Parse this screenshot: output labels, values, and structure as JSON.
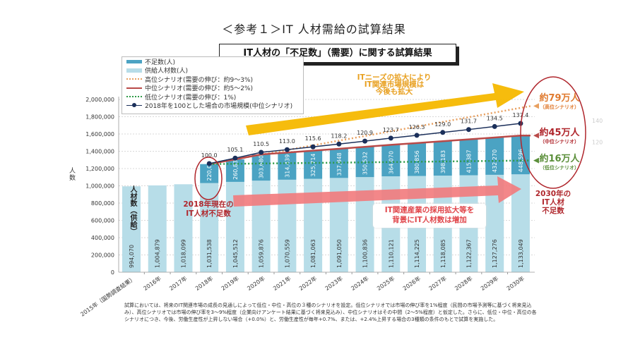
{
  "title": "＜参考１＞IT 人材需給の試算結果",
  "subtitle": "IT人材の「不足数」（需要）に関する試算結果",
  "legend": [
    {
      "label": "不足数(人)",
      "style": "bar-shortage"
    },
    {
      "label": "供給人材数(人)",
      "style": "bar-supply"
    },
    {
      "label": "高位シナリオ(需要の伸び：約9～3%)",
      "style": "dotted-orange"
    },
    {
      "label": "中位シナリオ(需要の伸び：約5～2%)",
      "style": "solid-red"
    },
    {
      "label": "低位シナリオ(需要の伸び：1%)",
      "style": "dotted-green"
    },
    {
      "label": "2018年を100とした場合の市場規模(中位シナリオ)",
      "style": "line-marker-navy"
    }
  ],
  "colors": {
    "shortage": "#4ba3c3",
    "supply": "#b7dde8",
    "high": "#e8a060",
    "mid": "#b94a48",
    "low": "#2e9a47",
    "index": "#1b2f5a",
    "accent_red": "#b0272d",
    "arrow_yellow": "#f5b800",
    "arrow_pink": "#f27a7c"
  },
  "chart_data": {
    "type": "bar",
    "stacked": true,
    "ylabel": "人数",
    "ylim": [
      0,
      2000000
    ],
    "yticks": [
      "0",
      "200,000",
      "400,000",
      "600,000",
      "800,000",
      "1,000,000",
      "1,200,000",
      "1,400,000",
      "1,600,000",
      "1,800,000",
      "2,000,000"
    ],
    "categories": [
      "2015年（国勢調査結果）",
      "2016年",
      "2017年",
      "2018年",
      "2019年",
      "2020年",
      "2021年",
      "2022年",
      "2023年",
      "2024年",
      "2025年",
      "2026年",
      "2027年",
      "2028年",
      "2029年",
      "2030年"
    ],
    "series": [
      {
        "name": "供給人材数(人)",
        "values": [
          994070,
          1004879,
          1018099,
          1031538,
          1045512,
          1059876,
          1070559,
          1081063,
          1091050,
          1100836,
          1110121,
          1114225,
          1118085,
          1122367,
          1127276,
          1133049
        ],
        "labels": [
          "994,070",
          "1,004,879",
          "1,018,099",
          "1,031,538",
          "1,045,512",
          "1,059,876",
          "1,070,559",
          "1,081,063",
          "1,091,050",
          "1,100,836",
          "1,110,121",
          "1,114,225",
          "1,118,085",
          "1,122,367",
          "1,127,276",
          "1,133,049"
        ]
      },
      {
        "name": "不足数(人)",
        "values": [
          null,
          null,
          null,
          220000,
          260835,
          303680,
          314439,
          325714,
          337848,
          350532,
          364070,
          380856,
          398183,
          415387,
          432270,
          448596
        ],
        "labels": [
          "",
          "",
          "",
          "220,000",
          "260,835",
          "303,680",
          "314,439",
          "325,714",
          "337,848",
          "350,532",
          "364,070",
          "380,856",
          "398,183",
          "415,387",
          "432,270",
          "448,596"
        ]
      },
      {
        "name": "2018年を100とした場合の市場規模(中位シナリオ)",
        "axis": "secondary",
        "values": [
          null,
          null,
          null,
          100.0,
          105.1,
          110.5,
          113.0,
          115.6,
          118.2,
          120.9,
          123.7,
          126.3,
          129.0,
          131.7,
          134.5,
          137.4
        ],
        "labels": [
          "",
          "",
          "",
          "100.0",
          "105.1",
          "110.5",
          "113.0",
          "115.6",
          "118.2",
          "120.9",
          "123.7",
          "126.3",
          "129.0",
          "131.7",
          "134.5",
          "137.4"
        ]
      }
    ],
    "scenario_shortage_2030": {
      "high": 790000,
      "mid": 448596,
      "low": 160000
    },
    "secondary_ticks": [
      "120",
      "140"
    ],
    "grid": true
  },
  "annotations": {
    "supply_axis_label": "人材数（供給）",
    "yellow_arrow_text": [
      "ITニーズの拡大により",
      "IT関連市場規模は",
      "今後も拡大"
    ],
    "pink_arrow_text": [
      "IT関連産業の採用拡大等を",
      "背景にIT人材数は増加"
    ],
    "shortage_2018": [
      "2018年現在の",
      "IT人材不足数"
    ],
    "shortage_2030": [
      "2030年の",
      "IT人材",
      "不足数"
    ],
    "high": {
      "value": "約79万人",
      "label": "（高位シナリオ）"
    },
    "mid": {
      "value": "約45万人",
      "label": "（中位シナリオ）"
    },
    "low": {
      "value": "約16万人",
      "label": "（低位シナリオ）"
    }
  },
  "footnote": "試算においては、将来のIT関連市場の成長の見通しによって低位・中位・高位の３種のシナリオを設定。低位シナリオでは市場の伸び率を1%程度（民間の市場予測等に基づく将来見込み）、高位シナリオでは市場の伸び率を3～9%程度（企業向けアンケート結果に基づく将来見込み）、中位シナリオはその中間（2～5%程度）と仮定した。さらに、低位・中位・高位の各シナリオにつき、今後、労働生産性が上昇しない場合（+0.0%）と、労働生産性が毎年+0.7%、または、+2.4%上昇する場合の3種類の条件のもとで試算を実施した。"
}
